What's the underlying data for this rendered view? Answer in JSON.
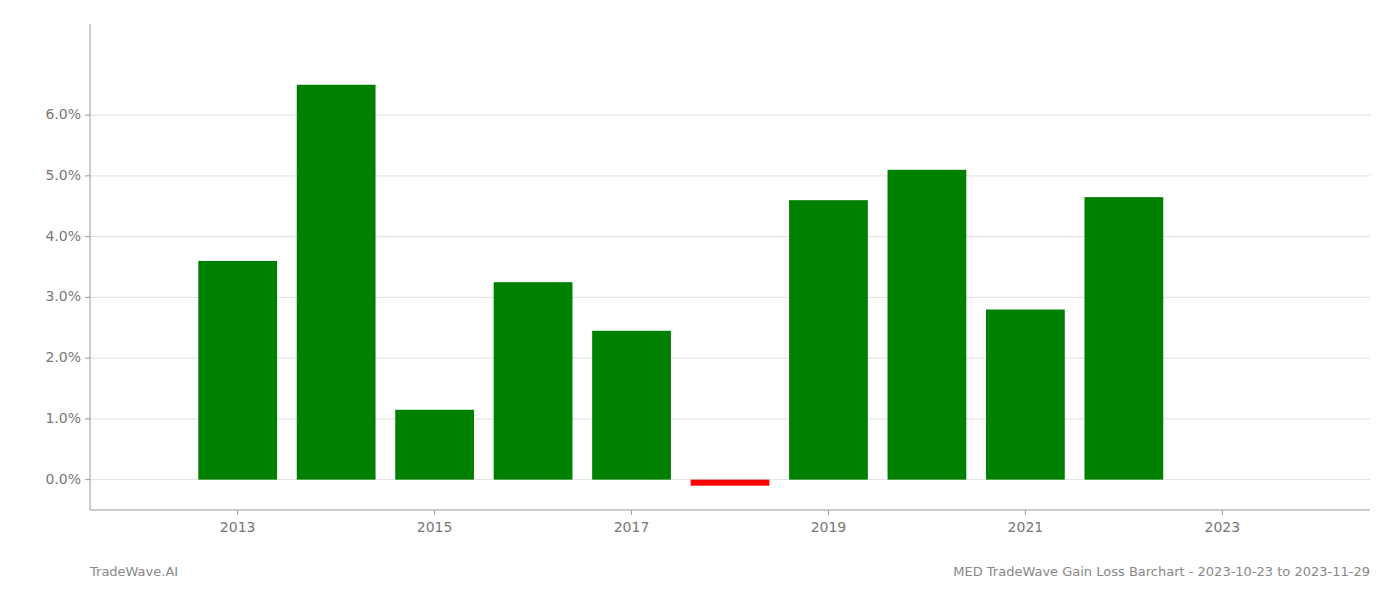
{
  "chart_data": {
    "type": "bar",
    "title": "MED TradeWave Gain Loss Barchart - 2023-10-23 to 2023-11-29",
    "annotations": [
      "TradeWave.AI"
    ],
    "x": [
      2013,
      2014,
      2015,
      2016,
      2017,
      2018,
      2019,
      2020,
      2021,
      2022
    ],
    "values": [
      0.036,
      0.065,
      0.0115,
      0.0325,
      0.0245,
      -0.001,
      0.046,
      0.051,
      0.028,
      0.0465
    ],
    "colors": [
      "#008000",
      "#008000",
      "#008000",
      "#008000",
      "#008000",
      "#ff0000",
      "#008000",
      "#008000",
      "#008000",
      "#008000"
    ],
    "xlim": [
      2011.5,
      2024.5
    ],
    "ylim": [
      -0.005,
      0.075
    ],
    "xticks": [
      2013,
      2015,
      2017,
      2019,
      2021,
      2023
    ],
    "yticks": [
      {
        "value": 0.0,
        "label": "0.0%"
      },
      {
        "value": 0.01,
        "label": "1.0%"
      },
      {
        "value": 0.02,
        "label": "2.0%"
      },
      {
        "value": 0.03,
        "label": "3.0%"
      },
      {
        "value": 0.04,
        "label": "4.0%"
      },
      {
        "value": 0.05,
        "label": "5.0%"
      },
      {
        "value": 0.06,
        "label": "6.0%"
      }
    ],
    "grid": true
  }
}
